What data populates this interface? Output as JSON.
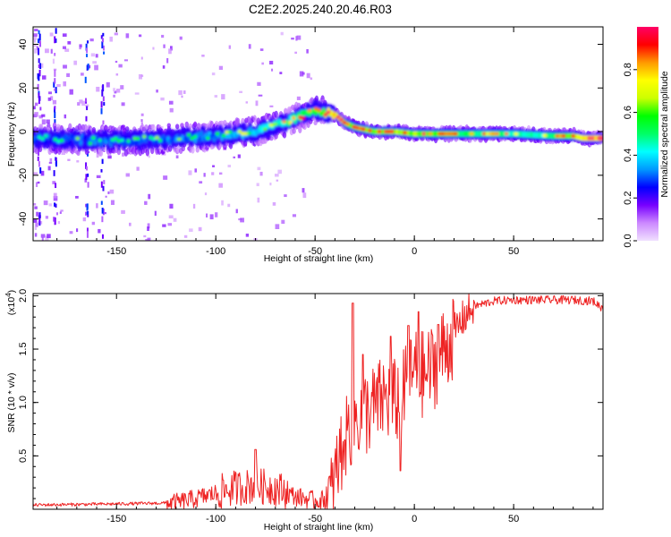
{
  "title": "C2E2.2025.240.20.46.R03",
  "chart_data": [
    {
      "type": "heatmap",
      "name": "spectrogram",
      "xlabel": "Height of straight line (km)",
      "ylabel": "Frequency (Hz)",
      "xlim": [
        -192,
        95
      ],
      "ylim": [
        -50,
        48
      ],
      "x_ticks": [
        -150,
        -100,
        -50,
        0,
        50
      ],
      "y_ticks": [
        -40,
        -20,
        0,
        20,
        40
      ],
      "ridge": {
        "x": [
          -192,
          -160,
          -140,
          -120,
          -100,
          -80,
          -65,
          -55,
          -50,
          -45,
          -40,
          -35,
          -30,
          -20,
          -10,
          0,
          20,
          50,
          70,
          80,
          85,
          95
        ],
        "freq": [
          -3,
          -4,
          -4,
          -3,
          -2,
          0,
          4,
          8,
          10,
          9,
          8,
          4,
          2,
          0,
          0,
          -1,
          -1,
          -1,
          -2,
          -2,
          -3,
          -3
        ],
        "amp": [
          0.28,
          0.3,
          0.3,
          0.32,
          0.35,
          0.42,
          0.5,
          0.58,
          0.62,
          0.75,
          0.9,
          0.7,
          0.65,
          0.72,
          0.72,
          0.72,
          0.6,
          0.5,
          0.55,
          0.75,
          0.88,
          0.92
        ]
      }
    },
    {
      "type": "colorbar",
      "name": "colorbar",
      "label": "Normalized spectral amplitude",
      "range": [
        0,
        1
      ],
      "ticks": [
        "0.0",
        "0.2",
        "0.4",
        "0.6",
        "0.8"
      ],
      "colors": [
        "#f0e0ff",
        "#cc88ff",
        "#7700ff",
        "#0000ff",
        "#0099ff",
        "#00ffff",
        "#00ff66",
        "#00ff00",
        "#ccff00",
        "#ffff00",
        "#ff9900",
        "#ff0000",
        "#ff0066"
      ]
    },
    {
      "type": "line",
      "name": "snr",
      "xlabel": "Height of straight line (km)",
      "ylabel": "SNR (10 * v/v)",
      "multiplier": "(x10",
      "multiplier_exp": "4",
      "multiplier_close": ")",
      "xlim": [
        -192,
        95
      ],
      "ylim": [
        0,
        2.02
      ],
      "x_ticks": [
        -150,
        -100,
        -50,
        0,
        50
      ],
      "y_ticks": [
        "0.5",
        "1.0",
        "1.5",
        "2.0"
      ],
      "color": "#ee2222",
      "anchors": {
        "x": [
          -192,
          -150,
          -120,
          -110,
          -100,
          -90,
          -80,
          -70,
          -60,
          -50,
          -42,
          -38,
          -35,
          -30,
          -25,
          -20,
          -15,
          -10,
          -5,
          0,
          5,
          10,
          15,
          20,
          25,
          30,
          40,
          50,
          60,
          70,
          80,
          90,
          95
        ],
        "y": [
          0.04,
          0.05,
          0.06,
          0.1,
          0.15,
          0.2,
          0.22,
          0.2,
          0.12,
          0.08,
          0.1,
          0.45,
          0.7,
          0.85,
          0.9,
          0.95,
          1.05,
          1.0,
          1.1,
          1.3,
          1.25,
          1.35,
          1.5,
          1.65,
          1.8,
          1.9,
          1.95,
          1.96,
          1.96,
          1.96,
          1.96,
          1.95,
          1.88
        ]
      },
      "spikes": {
        "x": [
          -80,
          -31,
          -12,
          -3,
          2,
          12,
          -26,
          -35,
          -7
        ],
        "y": [
          0.56,
          1.93,
          1.62,
          1.72,
          1.85,
          1.73,
          1.45,
          0.65,
          0.36
        ]
      }
    }
  ]
}
